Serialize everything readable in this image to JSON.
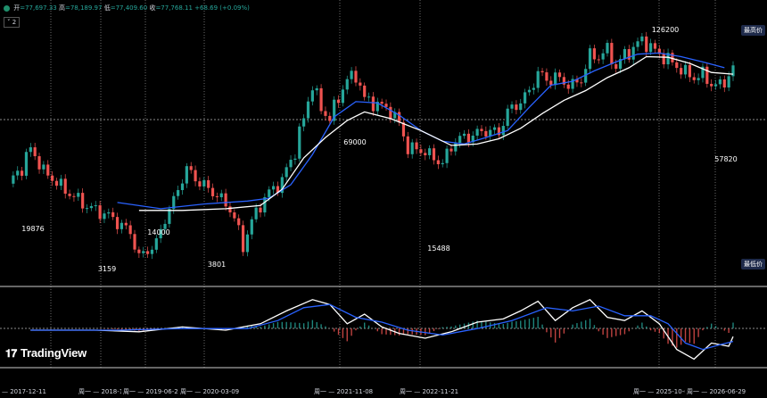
{
  "legend": {
    "open_label": "开",
    "open": "=77,697.33",
    "high_label": "高",
    "high": "=78,189.97",
    "low_label": "低",
    "low": "=77,409.60",
    "close_label": "收",
    "close": "=77,768.11",
    "change": "+68.69 (+0.09%)",
    "collapse_label": "2"
  },
  "tags": {
    "high_tag": "最高价",
    "low_tag": "最低价"
  },
  "logo": {
    "text": "TradingView",
    "mark": "17"
  },
  "colors": {
    "up": "#26a69a",
    "down": "#ef5350",
    "ma_fast": "#2962ff",
    "ma_slow": "#ffffff",
    "bg": "#000000"
  },
  "date_labels": [
    "— 2017-12-11",
    "周一 — 2018-12-",
    "周一 — 2019-06-24",
    "周一 — 2020-03-09",
    "周一 — 2021-11-08",
    "周一 — 2022-11-21",
    "周一 — 2025-10-06",
    "周一 — 2026-06-29"
  ],
  "chart_data": {
    "type": "candlestick",
    "y_scale": "log",
    "grid": false,
    "annotations": [
      {
        "label": "19876",
        "value": 19876
      },
      {
        "label": "3159",
        "value": 3159
      },
      {
        "label": "14000",
        "value": 14000
      },
      {
        "label": "3801",
        "value": 3801
      },
      {
        "label": "69000",
        "value": 69000
      },
      {
        "label": "15488",
        "value": 15488
      },
      {
        "label": "126200",
        "value": 126200
      },
      {
        "label": "57820",
        "value": 57820
      }
    ],
    "price_path": [
      [
        0,
        11000
      ],
      [
        3,
        14500
      ],
      [
        5,
        19876
      ],
      [
        8,
        13500
      ],
      [
        13,
        9800
      ],
      [
        18,
        7500
      ],
      [
        23,
        6400
      ],
      [
        28,
        4800
      ],
      [
        30,
        3159
      ],
      [
        34,
        4000
      ],
      [
        38,
        8200
      ],
      [
        41,
        14000
      ],
      [
        44,
        11200
      ],
      [
        48,
        9000
      ],
      [
        51,
        7200
      ],
      [
        54,
        3801
      ],
      [
        57,
        6800
      ],
      [
        60,
        9500
      ],
      [
        63,
        11500
      ],
      [
        66,
        19000
      ],
      [
        68,
        33000
      ],
      [
        70,
        58000
      ],
      [
        72,
        39000
      ],
      [
        74,
        33000
      ],
      [
        76,
        47000
      ],
      [
        78,
        64000
      ],
      [
        80,
        69000
      ],
      [
        82,
        46000
      ],
      [
        85,
        42000
      ],
      [
        88,
        38000
      ],
      [
        90,
        30000
      ],
      [
        92,
        20000
      ],
      [
        95,
        19500
      ],
      [
        98,
        17000
      ],
      [
        100,
        15488
      ],
      [
        103,
        23000
      ],
      [
        106,
        24500
      ],
      [
        110,
        27000
      ],
      [
        113,
        26000
      ],
      [
        115,
        37000
      ],
      [
        118,
        44000
      ],
      [
        120,
        52000
      ],
      [
        122,
        72000
      ],
      [
        124,
        63000
      ],
      [
        126,
        67000
      ],
      [
        128,
        61000
      ],
      [
        130,
        58000
      ],
      [
        132,
        64000
      ],
      [
        134,
        96000
      ],
      [
        136,
        94000
      ],
      [
        138,
        106000
      ],
      [
        140,
        78000
      ],
      [
        142,
        98000
      ],
      [
        144,
        108000
      ],
      [
        146,
        126200
      ],
      [
        148,
        110000
      ],
      [
        150,
        98000
      ],
      [
        152,
        90000
      ],
      [
        154,
        80000
      ],
      [
        156,
        72000
      ],
      [
        158,
        66000
      ],
      [
        160,
        70000
      ],
      [
        162,
        59000
      ],
      [
        164,
        57820
      ],
      [
        166,
        68000
      ],
      [
        167,
        77768
      ]
    ],
    "ma_fast_path": [
      [
        25,
        8000
      ],
      [
        35,
        7200
      ],
      [
        45,
        7800
      ],
      [
        55,
        8200
      ],
      [
        60,
        8600
      ],
      [
        65,
        10800
      ],
      [
        70,
        18000
      ],
      [
        75,
        34000
      ],
      [
        80,
        44000
      ],
      [
        85,
        43000
      ],
      [
        90,
        35000
      ],
      [
        95,
        27000
      ],
      [
        100,
        22500
      ],
      [
        105,
        21500
      ],
      [
        110,
        24000
      ],
      [
        115,
        27000
      ],
      [
        120,
        40000
      ],
      [
        125,
        58000
      ],
      [
        130,
        62000
      ],
      [
        135,
        74000
      ],
      [
        140,
        86000
      ],
      [
        145,
        98000
      ],
      [
        150,
        100000
      ],
      [
        155,
        94000
      ],
      [
        160,
        86000
      ],
      [
        165,
        78000
      ]
    ],
    "ma_slow_path": [
      [
        30,
        7000
      ],
      [
        40,
        7000
      ],
      [
        50,
        7200
      ],
      [
        58,
        7600
      ],
      [
        63,
        10000
      ],
      [
        68,
        17000
      ],
      [
        73,
        24000
      ],
      [
        78,
        32000
      ],
      [
        82,
        37000
      ],
      [
        88,
        33000
      ],
      [
        95,
        27000
      ],
      [
        102,
        21000
      ],
      [
        108,
        21500
      ],
      [
        113,
        23500
      ],
      [
        118,
        28000
      ],
      [
        123,
        36000
      ],
      [
        128,
        45000
      ],
      [
        133,
        53000
      ],
      [
        138,
        66000
      ],
      [
        143,
        78000
      ],
      [
        147,
        94000
      ],
      [
        152,
        93000
      ],
      [
        157,
        84000
      ],
      [
        162,
        72000
      ],
      [
        167,
        70000
      ]
    ],
    "macd_path": [
      [
        5,
        0.0
      ],
      [
        20,
        0.0
      ],
      [
        30,
        -0.05
      ],
      [
        40,
        0.1
      ],
      [
        50,
        0.0
      ],
      [
        58,
        0.2
      ],
      [
        64,
        0.6
      ],
      [
        70,
        0.95
      ],
      [
        74,
        0.8
      ],
      [
        78,
        0.2
      ],
      [
        82,
        0.5
      ],
      [
        86,
        0.1
      ],
      [
        90,
        -0.1
      ],
      [
        96,
        -0.25
      ],
      [
        102,
        -0.05
      ],
      [
        108,
        0.25
      ],
      [
        114,
        0.35
      ],
      [
        118,
        0.6
      ],
      [
        122,
        0.9
      ],
      [
        126,
        0.3
      ],
      [
        130,
        0.7
      ],
      [
        134,
        0.95
      ],
      [
        138,
        0.4
      ],
      [
        142,
        0.3
      ],
      [
        146,
        0.6
      ],
      [
        150,
        0.2
      ],
      [
        154,
        -0.6
      ],
      [
        158,
        -0.9
      ],
      [
        162,
        -0.4
      ],
      [
        166,
        -0.5
      ],
      [
        167,
        -0.2
      ]
    ],
    "signal_path": [
      [
        5,
        0.0
      ],
      [
        25,
        0.0
      ],
      [
        40,
        0.05
      ],
      [
        55,
        0.05
      ],
      [
        62,
        0.3
      ],
      [
        68,
        0.7
      ],
      [
        74,
        0.8
      ],
      [
        80,
        0.4
      ],
      [
        86,
        0.25
      ],
      [
        92,
        0.0
      ],
      [
        100,
        -0.15
      ],
      [
        108,
        0.05
      ],
      [
        116,
        0.3
      ],
      [
        124,
        0.7
      ],
      [
        130,
        0.6
      ],
      [
        136,
        0.75
      ],
      [
        142,
        0.45
      ],
      [
        148,
        0.45
      ],
      [
        152,
        0.2
      ],
      [
        156,
        -0.4
      ],
      [
        160,
        -0.6
      ],
      [
        164,
        -0.45
      ],
      [
        167,
        -0.35
      ]
    ]
  }
}
